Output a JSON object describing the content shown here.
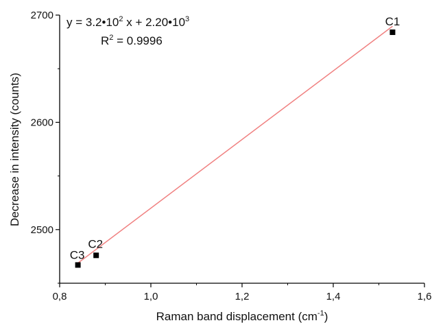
{
  "chart_data": {
    "type": "scatter",
    "xlabel_main": "Raman band displacement (cm",
    "xlabel_sup": "-1",
    "xlabel_end": ")",
    "ylabel": "Decrease in intensity (counts)",
    "xlim": [
      0.8,
      1.6
    ],
    "ylim": [
      2450,
      2700
    ],
    "x_ticks": [
      "0,8",
      "1,0",
      "1,2",
      "1,4",
      "1,6"
    ],
    "x_tick_values": [
      0.8,
      1.0,
      1.2,
      1.4,
      1.6
    ],
    "y_ticks": [
      "2500",
      "2600",
      "2700"
    ],
    "y_tick_values": [
      2500,
      2600,
      2700
    ],
    "points": [
      {
        "label": "C1",
        "x": 1.53,
        "y": 2684
      },
      {
        "label": "C2",
        "x": 0.88,
        "y": 2476
      },
      {
        "label": "C3",
        "x": 0.84,
        "y": 2467
      }
    ],
    "fit": {
      "slope": 320,
      "intercept": 2200,
      "x_range": [
        0.84,
        1.53
      ],
      "color": "#f08080",
      "equation_parts": {
        "a": "y = 3.2•10",
        "a_sup": "2",
        "b": " x + 2.20•10",
        "b_sup": "3"
      },
      "r2_parts": {
        "r": "R",
        "r_sup": "2",
        "value": " = 0.9996"
      }
    },
    "grid": false,
    "marker": "square",
    "marker_color": "#000000"
  }
}
